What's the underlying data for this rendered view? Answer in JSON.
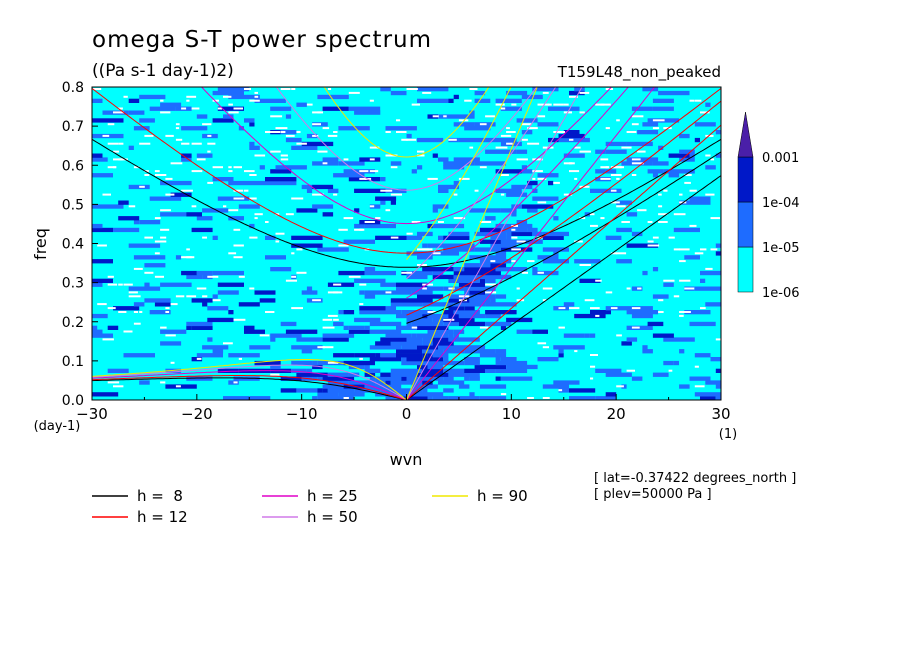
{
  "chart_data": {
    "type": "heatmap",
    "title": "omega S-T power spectrum",
    "subtitle": "((Pa s-1 day-1)2)",
    "run_label": "T159L48_non_peaked",
    "xlabel": "wvn",
    "ylabel": "freq",
    "x_units": "(1)",
    "y_units": "(day-1)",
    "xlim": [
      -30,
      30
    ],
    "ylim": [
      0,
      0.8
    ],
    "x_ticks": [
      -30,
      -20,
      -10,
      0,
      10,
      20,
      30
    ],
    "y_ticks": [
      0.0,
      0.1,
      0.2,
      0.3,
      0.4,
      0.5,
      0.6,
      0.7,
      0.8
    ],
    "colorbar": {
      "levels": [
        "1e-06",
        "1e-05",
        "1e-04",
        "0.001"
      ],
      "colors": [
        "#00ffff",
        "#1e6cff",
        "#0018c8",
        "#4a1fa8"
      ],
      "extend": "max"
    },
    "legend": [
      {
        "label": "h =  8",
        "h": 8,
        "color": "#000000"
      },
      {
        "label": "h = 12",
        "h": 12,
        "color": "#ff0000"
      },
      {
        "label": "h = 25",
        "h": 25,
        "color": "#e000c8"
      },
      {
        "label": "h = 50",
        "h": 50,
        "color": "#d07ae8"
      },
      {
        "label": "h = 90",
        "h": 90,
        "color": "#f0e800"
      }
    ],
    "annotations": [
      "[ lat=-0.37422 degrees_north ]",
      "[ plev=50000 Pa ]"
    ]
  }
}
